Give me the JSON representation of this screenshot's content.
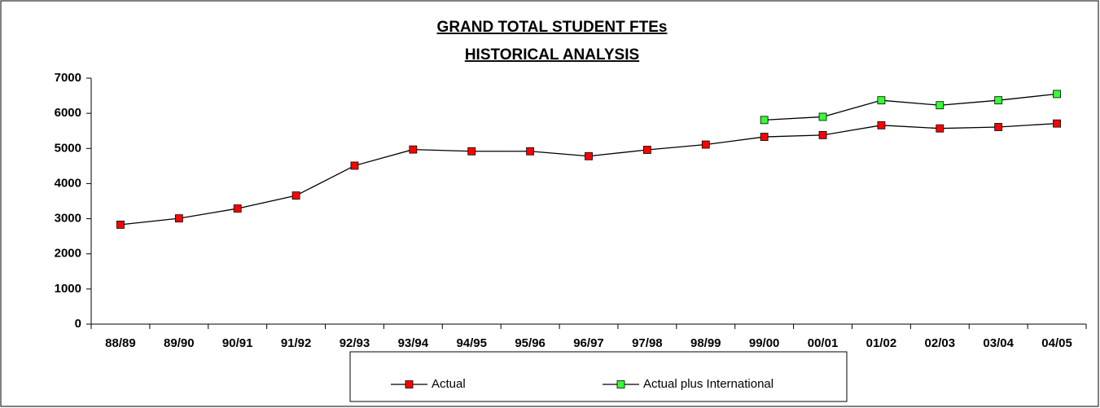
{
  "chart_data": {
    "type": "line",
    "title": "GRAND TOTAL STUDENT FTEs",
    "subtitle": "HISTORICAL ANALYSIS",
    "categories": [
      "88/89",
      "89/90",
      "90/91",
      "91/92",
      "92/93",
      "93/94",
      "94/95",
      "95/96",
      "96/97",
      "97/98",
      "98/99",
      "99/00",
      "00/01",
      "01/02",
      "02/03",
      "03/04",
      "04/05"
    ],
    "series": [
      {
        "name": "Actual",
        "color": "#ff0000",
        "values": [
          2830,
          3010,
          3290,
          3660,
          4510,
          4970,
          4920,
          4920,
          4780,
          4960,
          5110,
          5330,
          5380,
          5660,
          5570,
          5610,
          5710
        ]
      },
      {
        "name": "Actual plus International",
        "color": "#33ff33",
        "values": [
          null,
          null,
          null,
          null,
          null,
          null,
          null,
          null,
          null,
          null,
          null,
          5810,
          5900,
          6370,
          6230,
          6370,
          6550
        ]
      }
    ],
    "ylim": [
      0,
      7000
    ],
    "yticks": [
      0,
      1000,
      2000,
      3000,
      4000,
      5000,
      6000,
      7000
    ],
    "grid": false
  }
}
